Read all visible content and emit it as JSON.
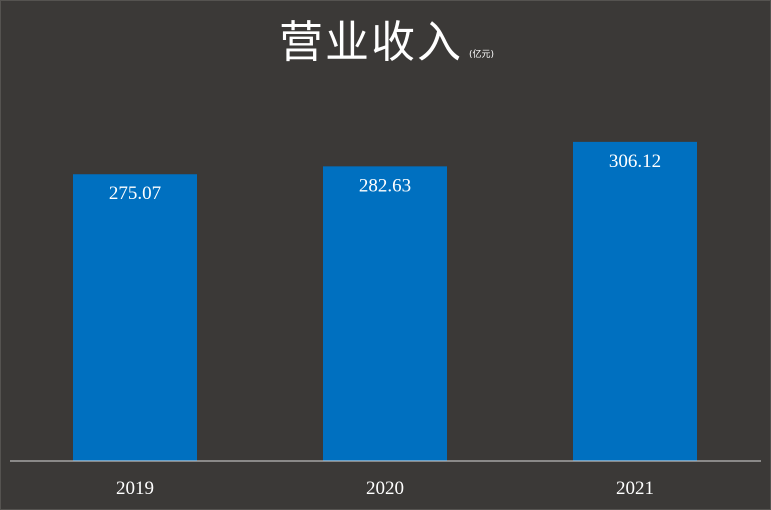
{
  "chart_data": {
    "type": "bar",
    "title": "营业收入",
    "unit": "(亿元)",
    "categories": [
      "2019",
      "2020",
      "2021"
    ],
    "values": [
      275.07,
      282.63,
      306.12
    ],
    "colors": {
      "background": "#3b3937",
      "bar": "#0070c0",
      "text": "#ffffff",
      "axis": "#d9d9d9"
    },
    "grid": false,
    "legend": "none"
  }
}
